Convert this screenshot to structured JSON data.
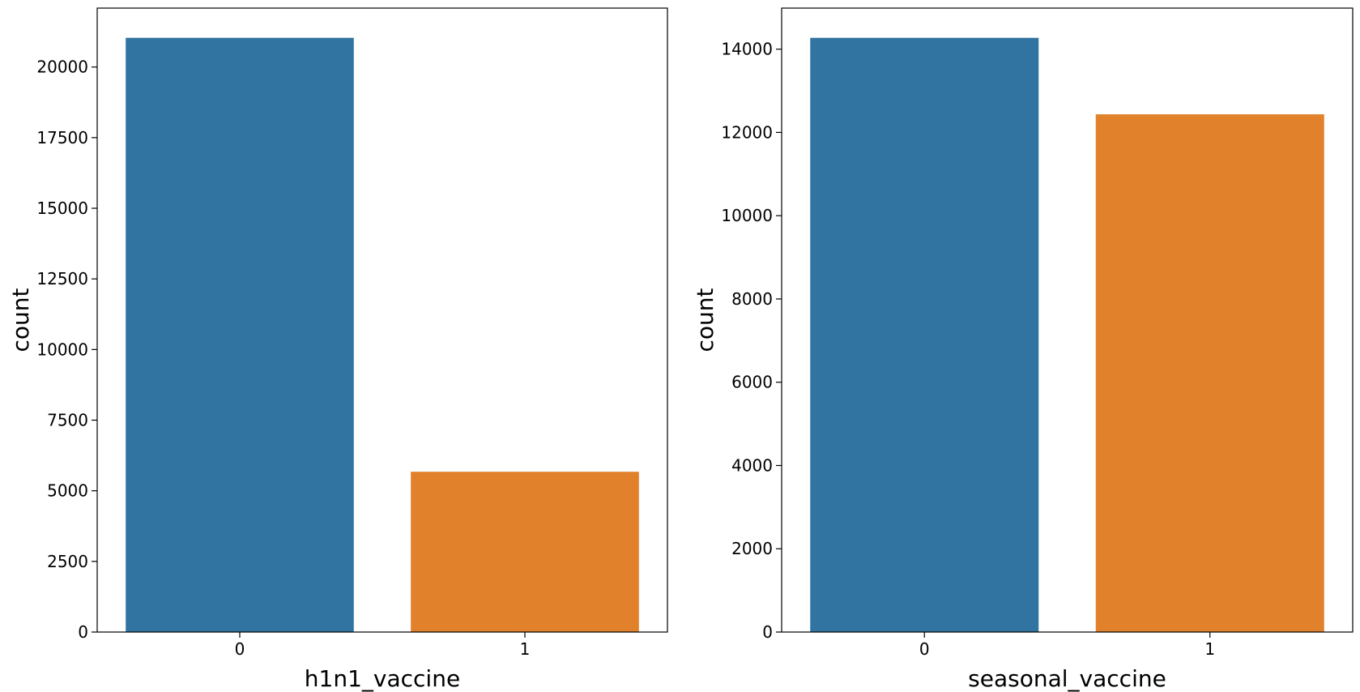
{
  "chart_data": [
    {
      "type": "bar",
      "categories": [
        "0",
        "1"
      ],
      "values": [
        21033,
        5674
      ],
      "colors": [
        "#3274a1",
        "#e1812c"
      ],
      "xlabel": "h1n1_vaccine",
      "ylabel": "count",
      "ylim": [
        0,
        22085
      ],
      "yticks": [
        0,
        2500,
        5000,
        7500,
        10000,
        12500,
        15000,
        17500,
        20000
      ],
      "grid": false,
      "legend": "none"
    },
    {
      "type": "bar",
      "categories": [
        "0",
        "1"
      ],
      "values": [
        14272,
        12435
      ],
      "colors": [
        "#3274a1",
        "#e1812c"
      ],
      "xlabel": "seasonal_vaccine",
      "ylabel": "count",
      "ylim": [
        0,
        14986
      ],
      "yticks": [
        0,
        2000,
        4000,
        6000,
        8000,
        10000,
        12000,
        14000
      ],
      "grid": false,
      "legend": "none"
    }
  ]
}
